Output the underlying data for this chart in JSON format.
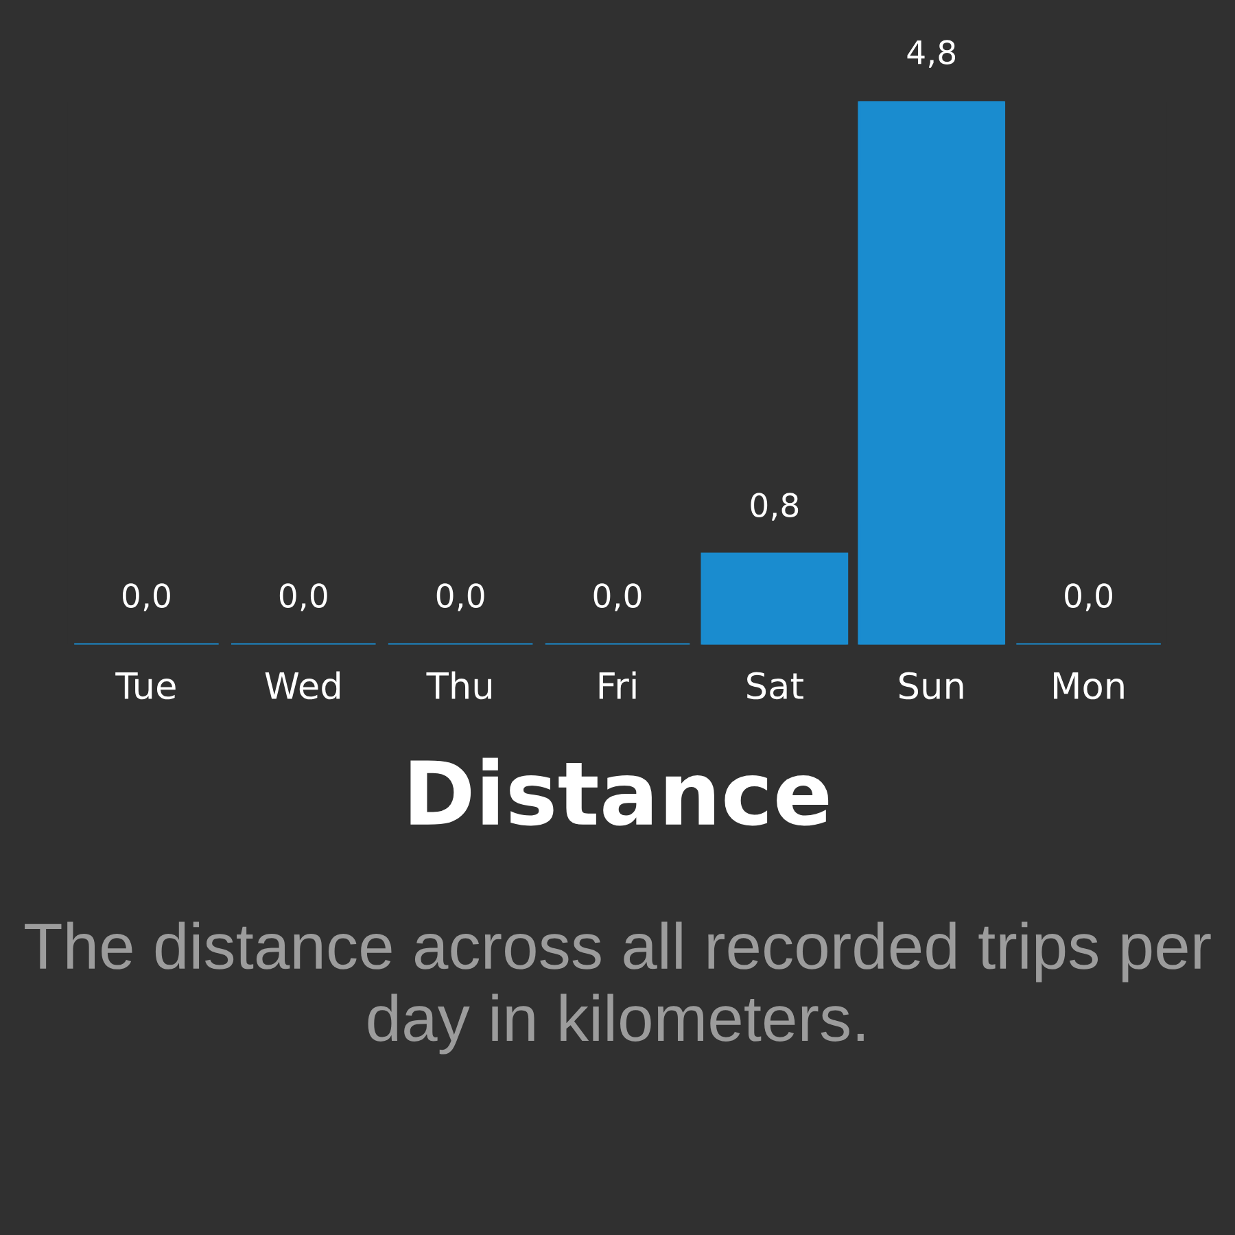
{
  "chart_data": {
    "type": "bar",
    "title": "Distance",
    "subtitle": "The distance across all recorded trips per day in kilometers.",
    "categories": [
      "Tue",
      "Wed",
      "Thu",
      "Fri",
      "Sat",
      "Sun",
      "Mon"
    ],
    "values": [
      0,
      0,
      0,
      0,
      0.8,
      4.8,
      0
    ],
    "value_labels": [
      "0,0",
      "0,0",
      "0,0",
      "0,0",
      "0,8",
      "4,8",
      "0,0"
    ],
    "color": "#1a8ccf",
    "grid": false,
    "legend": false
  }
}
